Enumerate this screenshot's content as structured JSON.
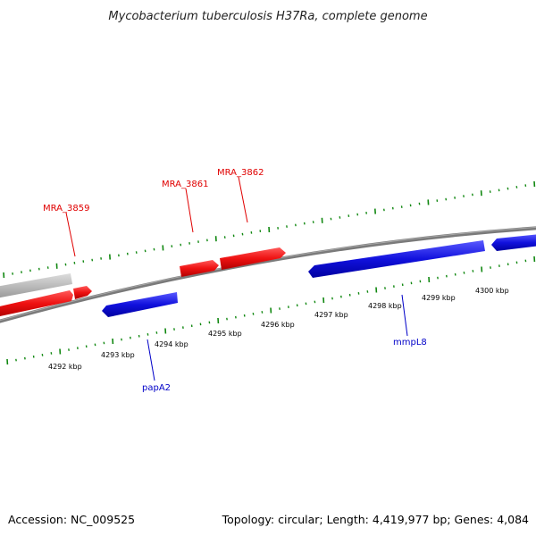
{
  "title": "Mycobacterium tuberculosis H37Ra, complete genome",
  "footer": {
    "accession": "Accession: NC_009525",
    "stats": "Topology: circular; Length: 4,419,977 bp; Genes: 4,084"
  },
  "colors": {
    "forward_gene": "#ee1111",
    "reverse_gene": "#1111dd",
    "other_feature": "#bbbbbb",
    "backbone": "#808080",
    "tick": "#118811",
    "forward_label": "#e00000",
    "reverse_label": "#0000c8"
  },
  "scale": {
    "labels": [
      "4292 kbp",
      "4293 kbp",
      "4294 kbp",
      "4295 kbp",
      "4296 kbp",
      "4297 kbp",
      "4298 kbp",
      "4299 kbp",
      "4300 kbp"
    ]
  },
  "gene_labels": {
    "forward": [
      "MRA_3859",
      "MRA_3861",
      "MRA_3862"
    ],
    "reverse": [
      "papA2",
      "mmpL8"
    ]
  }
}
